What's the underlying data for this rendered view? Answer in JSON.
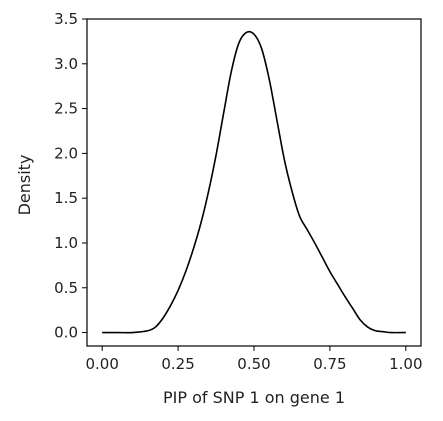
{
  "chart_data": {
    "type": "line",
    "title": "",
    "xlabel": "PIP of SNP 1 on gene 1",
    "ylabel": "Density",
    "xlim": [
      -0.05,
      1.05
    ],
    "ylim": [
      -0.15,
      3.5
    ],
    "x_ticks": [
      0.0,
      0.25,
      0.5,
      0.75,
      1.0
    ],
    "x_tick_labels": [
      "0.00",
      "0.25",
      "0.50",
      "0.75",
      "1.00"
    ],
    "y_ticks": [
      0.0,
      0.5,
      1.0,
      1.5,
      2.0,
      2.5,
      3.0,
      3.5
    ],
    "y_tick_labels": [
      "0.0",
      "0.5",
      "1.0",
      "1.5",
      "2.0",
      "2.5",
      "3.0",
      "3.5"
    ],
    "grid": false,
    "legend": "none",
    "line_color": "#000000",
    "series": [
      {
        "x": [
          0.0,
          0.05,
          0.1,
          0.15,
          0.175,
          0.2,
          0.225,
          0.25,
          0.275,
          0.3,
          0.325,
          0.35,
          0.375,
          0.4,
          0.425,
          0.45,
          0.475,
          0.5,
          0.525,
          0.55,
          0.575,
          0.6,
          0.625,
          0.65,
          0.675,
          0.7,
          0.725,
          0.75,
          0.775,
          0.8,
          0.825,
          0.85,
          0.875,
          0.9,
          0.925,
          0.95,
          1.0
        ],
        "y": [
          0.0,
          0.0,
          0.0,
          0.02,
          0.06,
          0.16,
          0.3,
          0.47,
          0.68,
          0.93,
          1.22,
          1.57,
          1.98,
          2.45,
          2.91,
          3.23,
          3.35,
          3.33,
          3.17,
          2.83,
          2.38,
          1.93,
          1.58,
          1.3,
          1.15,
          1.0,
          0.84,
          0.68,
          0.54,
          0.4,
          0.27,
          0.14,
          0.06,
          0.02,
          0.01,
          0.0,
          0.0
        ]
      }
    ]
  }
}
